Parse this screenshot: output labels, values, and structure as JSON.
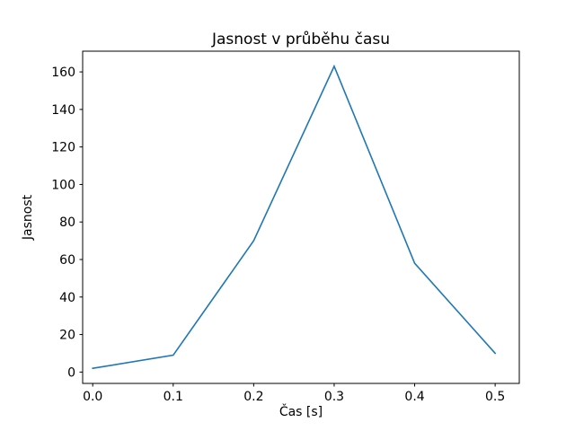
{
  "chart_data": {
    "type": "line",
    "title": "Jasnost v průběhu času",
    "xlabel": "Čas [s]",
    "ylabel": "Jasnost",
    "x": [
      0.0,
      0.1,
      0.2,
      0.3,
      0.4,
      0.5
    ],
    "y": [
      2,
      9,
      70,
      163,
      58,
      10
    ],
    "series": [
      {
        "name": "Jasnost",
        "x": [
          0.0,
          0.1,
          0.2,
          0.3,
          0.4,
          0.5
        ],
        "y": [
          2,
          9,
          70,
          163,
          58,
          10
        ]
      }
    ],
    "x_ticks": [
      0.0,
      0.1,
      0.2,
      0.3,
      0.4,
      0.5
    ],
    "x_tick_labels": [
      "0.0",
      "0.1",
      "0.2",
      "0.3",
      "0.4",
      "0.5"
    ],
    "y_ticks": [
      0,
      20,
      40,
      60,
      80,
      100,
      120,
      140,
      160
    ],
    "y_tick_labels": [
      "0",
      "20",
      "40",
      "60",
      "80",
      "100",
      "120",
      "140",
      "160"
    ],
    "xlim": [
      -0.0125,
      0.53
    ],
    "ylim": [
      -6.05,
      171.05
    ],
    "grid": false,
    "legend": null,
    "line_color": "#1f77b4",
    "line_width": 1.6,
    "axis_color": "#000000",
    "background_color": "#ffffff"
  }
}
